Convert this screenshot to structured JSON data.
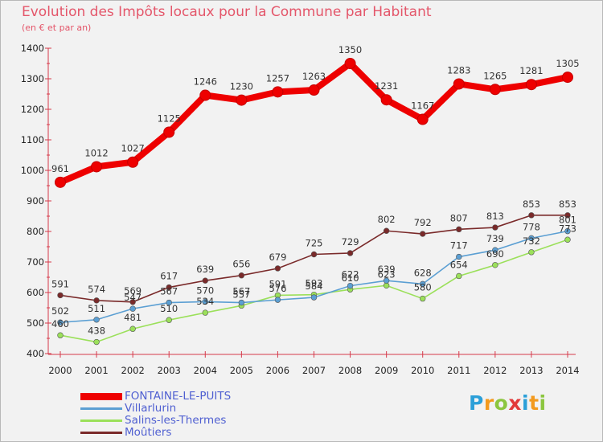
{
  "title": "Evolution des Impôts locaux pour la Commune par Habitant",
  "subtitle": "(en € et par an)",
  "logo": {
    "letters": [
      "P",
      "r",
      "o",
      "x",
      "i",
      "t",
      "i"
    ],
    "colors": [
      "#2b9fd8",
      "#f39a1e",
      "#8cc63f",
      "#e23a3a",
      "#2b9fd8",
      "#f39a1e",
      "#8cc63f"
    ]
  },
  "chart_data": {
    "type": "line",
    "title": "Evolution des Impôts locaux pour la Commune par Habitant",
    "subtitle": "(en € et par an)",
    "xlabel": "",
    "ylabel": "",
    "x": [
      "2000",
      "2001",
      "2002",
      "2003",
      "2004",
      "2005",
      "2006",
      "2007",
      "2008",
      "2009",
      "2010",
      "2011",
      "2012",
      "2013",
      "2014"
    ],
    "ylim": [
      400,
      1400
    ],
    "yticks": [
      400,
      500,
      600,
      700,
      800,
      900,
      1000,
      1100,
      1200,
      1300,
      1400
    ],
    "grid": false,
    "legend_position": "bottom-left",
    "series": [
      {
        "name": "FONTAINE-LE-PUITS",
        "color": "#ee0000",
        "values": [
          961,
          1012,
          1027,
          1125,
          1246,
          1230,
          1257,
          1263,
          1350,
          1231,
          1167,
          1283,
          1265,
          1281,
          1305
        ],
        "labels": [
          "961",
          "1012",
          "1027",
          "1125",
          "1246",
          "1230",
          "1257",
          "1263",
          "1350",
          "1231",
          "1167",
          "1283",
          "1265",
          "1281",
          "1305"
        ]
      },
      {
        "name": "Villarlurin",
        "color": "#5b9fd3",
        "values": [
          502,
          511,
          547,
          567,
          570,
          567,
          576,
          584,
          622,
          639,
          628,
          717,
          739,
          778,
          801
        ],
        "labels": [
          "502",
          "511",
          "547",
          "567",
          "570",
          "567",
          "576",
          "584",
          "622",
          "639",
          "628",
          "717",
          "739",
          "778",
          "801"
        ]
      },
      {
        "name": "Salins-les-Thermes",
        "color": "#9be05a",
        "values": [
          460,
          438,
          481,
          510,
          534,
          557,
          591,
          593,
          610,
          623,
          580,
          654,
          690,
          732,
          773
        ],
        "labels": [
          "460",
          "438",
          "481",
          "510",
          "534",
          "557",
          "591",
          "593",
          "610",
          "623",
          "580",
          "654",
          "690",
          "732",
          "773"
        ]
      },
      {
        "name": "Moûtiers",
        "color": "#7a2a2a",
        "values": [
          591,
          574,
          569,
          617,
          639,
          656,
          679,
          725,
          729,
          802,
          792,
          807,
          813,
          853,
          853
        ],
        "labels": [
          "591",
          "574",
          "569",
          "617",
          "639",
          "656",
          "679",
          "725",
          "729",
          "802",
          "792",
          "807",
          "813",
          "853",
          "853"
        ]
      }
    ]
  }
}
